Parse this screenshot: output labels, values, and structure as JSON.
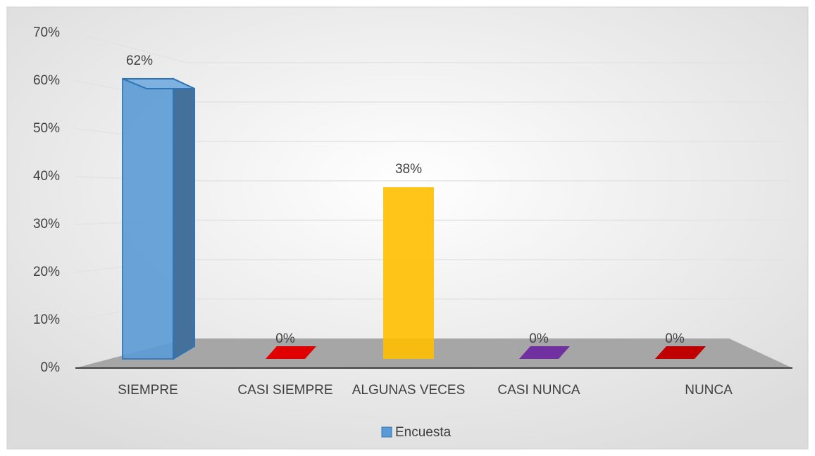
{
  "chart_data": {
    "type": "bar",
    "categories": [
      "SIEMPRE",
      "CASI SIEMPRE",
      "ALGUNAS VECES",
      "CASI NUNCA",
      "NUNCA"
    ],
    "series": [
      {
        "name": "Encuesta",
        "color": "#5b9bd5",
        "values": [
          62,
          0,
          38,
          0,
          0
        ],
        "value_labels": [
          "62%",
          "0%",
          "38%",
          "0%",
          "0%"
        ],
        "colors": [
          "#5b9bd5",
          "#e00000",
          "#ffc000",
          "#7030a0",
          "#c00000"
        ]
      }
    ],
    "ylim": [
      0,
      70
    ],
    "yticks": [
      {
        "value": 0,
        "label": "0%"
      },
      {
        "value": 10,
        "label": "10%"
      },
      {
        "value": 20,
        "label": "20%"
      },
      {
        "value": 30,
        "label": "30%"
      },
      {
        "value": 40,
        "label": "40%"
      },
      {
        "value": 50,
        "label": "50%"
      },
      {
        "value": 60,
        "label": "60%"
      },
      {
        "value": 70,
        "label": "70%"
      }
    ],
    "grid": true,
    "legend": "bottom"
  }
}
